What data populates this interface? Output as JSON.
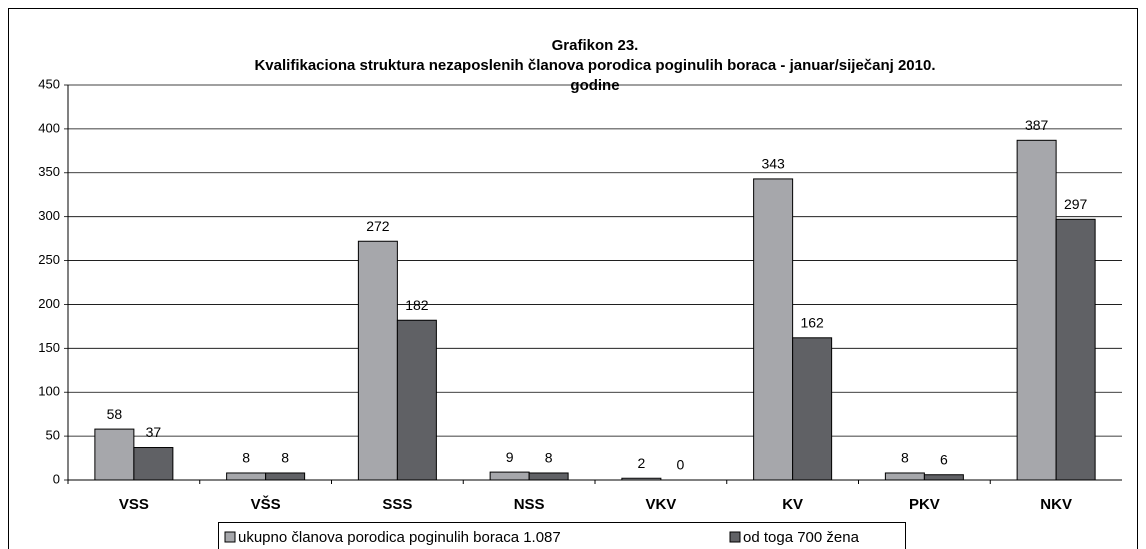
{
  "chart_data": {
    "type": "bar",
    "title": [
      "Grafikon 23.",
      "Kvalifikaciona struktura nezaposlenih članova porodica poginulih boraca  - januar/siječanj 2010.",
      "godine"
    ],
    "categories": [
      "VSS",
      "VŠS",
      "SSS",
      "NSS",
      "VKV",
      "KV",
      "PKV",
      "NKV"
    ],
    "series": [
      {
        "name": "ukupno članova porodica poginulih boraca 1.087",
        "color": "#a6a7ab",
        "values": [
          58,
          8,
          272,
          9,
          2,
          343,
          8,
          387
        ]
      },
      {
        "name": "od toga 700 žena",
        "color": "#606165",
        "values": [
          37,
          8,
          182,
          8,
          0,
          162,
          6,
          297
        ]
      }
    ],
    "ylim": [
      0,
      450
    ],
    "yticks": [
      0,
      50,
      100,
      150,
      200,
      250,
      300,
      350,
      400,
      450
    ],
    "grid": true,
    "legend": "bottom"
  }
}
